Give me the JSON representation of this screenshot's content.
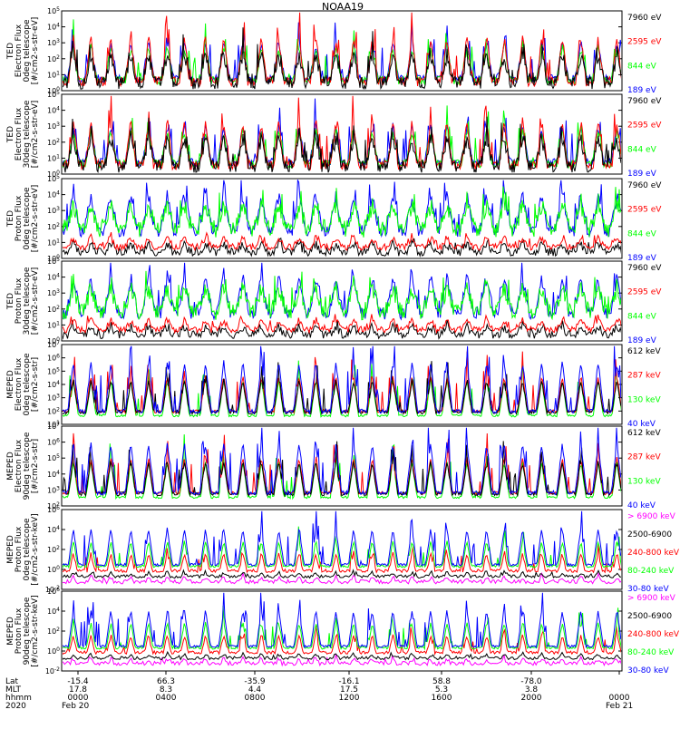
{
  "title": "NOAA19",
  "footer": {
    "row_labels": [
      "Lat",
      "MLT",
      "hhmm",
      "2020"
    ],
    "lat": [
      "-15.4",
      "66.3",
      "-35.9",
      "-16.1",
      "58.8",
      "-78.0"
    ],
    "mlt": [
      "17.8",
      "8.3",
      "4.4",
      "17.5",
      "5.3",
      "3.8"
    ],
    "hhmm": [
      "0000",
      "0400",
      "0800",
      "1200",
      "1600",
      "2000",
      "0000"
    ],
    "date_start": "Feb 20",
    "date_end": "Feb 21"
  },
  "colors": {
    "black": "#000000",
    "red": "#ff0000",
    "green": "#00ff00",
    "blue": "#0000ff",
    "magenta": "#ff00ff"
  },
  "chart_data": [
    {
      "type": "line",
      "ylabel": [
        "TED",
        "Electron Flux",
        "0deg telescope",
        "[#/cm2-s-str-eV]"
      ],
      "scale": "log",
      "yticks": [
        "10^0",
        "10^1",
        "10^2",
        "10^3",
        "10^4",
        "10^5"
      ],
      "ylim": [
        1,
        100000
      ],
      "series": [
        {
          "name": "7960 eV",
          "color": "#000000"
        },
        {
          "name": "2595 eV",
          "color": "#ff0000"
        },
        {
          "name": "844 eV",
          "color": "#00ff00"
        },
        {
          "name": "189 eV",
          "color": "#0000ff"
        }
      ],
      "style": "ted_e"
    },
    {
      "type": "line",
      "ylabel": [
        "TED",
        "Electron Flux",
        "30deg telescope",
        "[#/cm2-s-str-eV]"
      ],
      "scale": "log",
      "yticks": [
        "10^0",
        "10^1",
        "10^2",
        "10^3",
        "10^4",
        "10^5"
      ],
      "ylim": [
        1,
        100000
      ],
      "series": [
        {
          "name": "7960 eV",
          "color": "#000000"
        },
        {
          "name": "2595 eV",
          "color": "#ff0000"
        },
        {
          "name": "844 eV",
          "color": "#00ff00"
        },
        {
          "name": "189 eV",
          "color": "#0000ff"
        }
      ],
      "style": "ted_e"
    },
    {
      "type": "line",
      "ylabel": [
        "TED",
        "Proton Flux",
        "0deg telescope",
        "[#/cm2-s-str-eV]"
      ],
      "scale": "log",
      "yticks": [
        "10^0",
        "10^1",
        "10^2",
        "10^3",
        "10^4",
        "10^5"
      ],
      "ylim": [
        1,
        100000
      ],
      "series": [
        {
          "name": "7960 eV",
          "color": "#000000"
        },
        {
          "name": "2595 eV",
          "color": "#ff0000"
        },
        {
          "name": "844 eV",
          "color": "#00ff00"
        },
        {
          "name": "189 eV",
          "color": "#0000ff"
        }
      ],
      "style": "ted_p"
    },
    {
      "type": "line",
      "ylabel": [
        "TED",
        "Proton Flux",
        "30deg telescope",
        "[#/cm2-s-str-eV]"
      ],
      "scale": "log",
      "yticks": [
        "10^0",
        "10^1",
        "10^2",
        "10^3",
        "10^4",
        "10^5"
      ],
      "ylim": [
        1,
        100000
      ],
      "series": [
        {
          "name": "7960 eV",
          "color": "#000000"
        },
        {
          "name": "2595 eV",
          "color": "#ff0000"
        },
        {
          "name": "844 eV",
          "color": "#00ff00"
        },
        {
          "name": "189 eV",
          "color": "#0000ff"
        }
      ],
      "style": "ted_p"
    },
    {
      "type": "line",
      "ylabel": [
        "MEPED",
        "Electron Flux",
        "0deg telescope",
        "[#/cm2-s-str]"
      ],
      "scale": "log",
      "yticks": [
        "10^1",
        "10^2",
        "10^3",
        "10^4",
        "10^5",
        "10^6",
        "10^7"
      ],
      "ylim": [
        10,
        10000000
      ],
      "series": [
        {
          "name": "612 keV",
          "color": "#000000"
        },
        {
          "name": "287 keV",
          "color": "#ff0000"
        },
        {
          "name": "130 keV",
          "color": "#00ff00"
        },
        {
          "name": "40 keV",
          "color": "#0000ff"
        }
      ],
      "style": "mep_e"
    },
    {
      "type": "line",
      "ylabel": [
        "MEPED",
        "Electron Flux",
        "90deg telescope",
        "[#/cm2-s-str]"
      ],
      "scale": "log",
      "yticks": [
        "10^2",
        "10^3",
        "10^4",
        "10^5",
        "10^6",
        "10^7"
      ],
      "ylim": [
        100,
        10000000
      ],
      "series": [
        {
          "name": "612 keV",
          "color": "#000000"
        },
        {
          "name": "287 keV",
          "color": "#ff0000"
        },
        {
          "name": "130 keV",
          "color": "#00ff00"
        },
        {
          "name": "40 keV",
          "color": "#0000ff"
        }
      ],
      "style": "mep_e"
    },
    {
      "type": "line",
      "ylabel": [
        "MEPED",
        "Proton Flux",
        "0deg telescope",
        "[#/cm2-s-str-keV]"
      ],
      "scale": "log",
      "yticks": [
        "10^-2",
        "10^0",
        "10^2",
        "10^4",
        "10^6"
      ],
      "ylim": [
        0.01,
        1000000
      ],
      "series": [
        {
          "name": "> 6900 keV",
          "color": "#ff00ff"
        },
        {
          "name": "2500-6900",
          "color": "#000000"
        },
        {
          "name": "240-800 keV",
          "color": "#ff0000"
        },
        {
          "name": "80-240 keV",
          "color": "#00ff00"
        },
        {
          "name": "30-80 keV",
          "color": "#0000ff"
        }
      ],
      "style": "mep_p"
    },
    {
      "type": "line",
      "ylabel": [
        "MEPED",
        "Proton Flux",
        "90deg telescope",
        "[#/cm2-s-str-keV]"
      ],
      "scale": "log",
      "yticks": [
        "10^-2",
        "10^0",
        "10^2",
        "10^4",
        "10^6"
      ],
      "ylim": [
        0.01,
        1000000
      ],
      "series": [
        {
          "name": "> 6900 keV",
          "color": "#ff00ff"
        },
        {
          "name": "2500-6900",
          "color": "#000000"
        },
        {
          "name": "240-800 keV",
          "color": "#ff0000"
        },
        {
          "name": "80-240 keV",
          "color": "#00ff00"
        },
        {
          "name": "30-80 keV",
          "color": "#0000ff"
        }
      ],
      "style": "mep_p"
    }
  ]
}
